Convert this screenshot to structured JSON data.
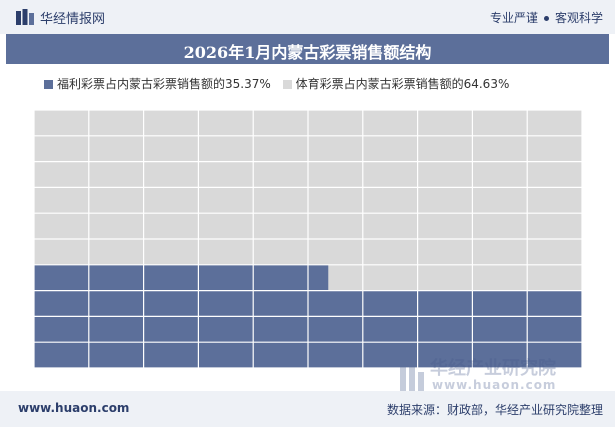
{
  "header": {
    "brand": "华经情报网",
    "tagline_left": "专业严谨",
    "tagline_right": "客观科学"
  },
  "title": "2026年1月内蒙古彩票销售额结构",
  "footer": {
    "site": "www.huaon.com",
    "source": "数据来源：财政部，华经产业研究院整理"
  },
  "watermark": {
    "name": "华经产业研究院",
    "url": "www.huaon.com"
  },
  "colors": {
    "welfare": "#5c6f9a",
    "sports": "#d9d9d9",
    "grid_line": "#ffffff",
    "title_bg": "#5c6f9a",
    "bar_bg": "#eef1f6"
  },
  "chart_data": {
    "type": "waffle",
    "grid": {
      "rows": 10,
      "cols": 10
    },
    "fill_order": "bottom-up, left-to-right",
    "series": [
      {
        "name": "福利彩票占内蒙古彩票销售额的35.37%",
        "value": 35.37,
        "color": "#5c6f9a"
      },
      {
        "name": "体育彩票占内蒙古彩票销售额的64.63%",
        "value": 64.63,
        "color": "#d9d9d9"
      }
    ],
    "legend_position": "top-left"
  }
}
